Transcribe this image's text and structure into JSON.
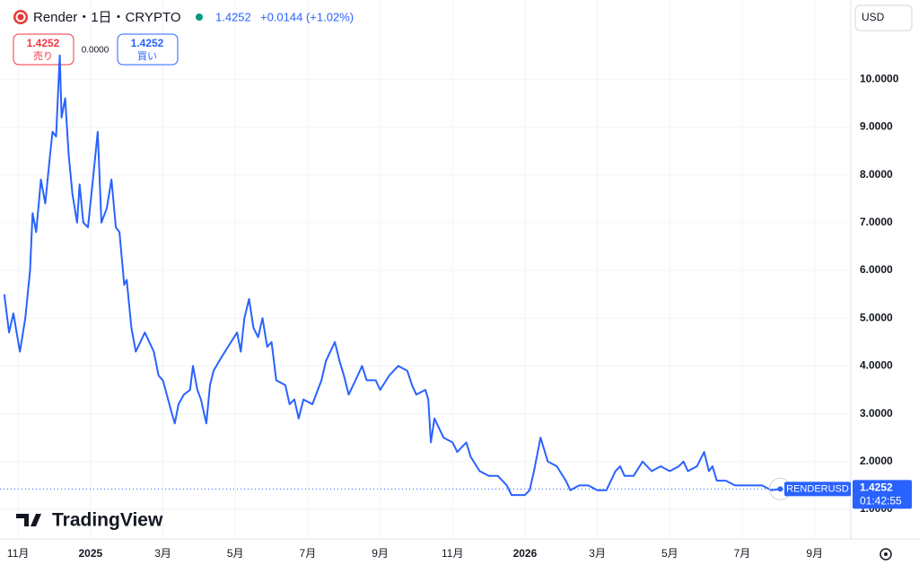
{
  "header": {
    "symbol": "Render・1日・CRYPTO",
    "price": "1.4252",
    "change": "+0.0144 (+1.02%)"
  },
  "trade": {
    "sell_price": "1.4252",
    "sell_label": "売り",
    "spread": "0.0000",
    "buy_price": "1.4252",
    "buy_label": "買い"
  },
  "currency": "USD",
  "logo": "TradingView",
  "countdown": "01:42:55",
  "chart_data": {
    "type": "line",
    "x": [
      -0.38,
      -0.25,
      -0.13,
      0.05,
      0.2,
      0.33,
      0.4,
      0.5,
      0.63,
      0.75,
      0.88,
      0.95,
      1.05,
      1.15,
      1.2,
      1.3,
      1.4,
      1.5,
      1.63,
      1.7,
      1.8,
      1.93,
      2.08,
      2.2,
      2.3,
      2.45,
      2.58,
      2.7,
      2.8,
      2.93,
      3.0,
      3.13,
      3.25,
      3.5,
      3.75,
      3.88,
      4.0,
      4.25,
      4.33,
      4.43,
      4.58,
      4.75,
      4.83,
      4.95,
      5.05,
      5.2,
      5.3,
      5.4,
      5.63,
      5.88,
      6.05,
      6.15,
      6.25,
      6.38,
      6.5,
      6.63,
      6.75,
      6.88,
      7.0,
      7.13,
      7.38,
      7.5,
      7.63,
      7.75,
      7.88,
      8.13,
      8.38,
      8.5,
      8.75,
      8.88,
      9.0,
      9.13,
      9.38,
      9.5,
      9.63,
      9.88,
      10.0,
      10.25,
      10.5,
      10.75,
      10.88,
      11.0,
      11.25,
      11.33,
      11.4,
      11.5,
      11.75,
      12.0,
      12.13,
      12.38,
      12.5,
      12.75,
      13.0,
      13.25,
      13.5,
      13.63,
      14.0,
      14.13,
      14.25,
      14.43,
      14.63,
      14.88,
      15.13,
      15.25,
      15.5,
      15.75,
      16.0,
      16.25,
      16.5,
      16.63,
      16.75,
      17.0,
      17.25,
      17.5,
      17.75,
      18.0,
      18.25,
      18.38,
      18.5,
      18.75,
      18.95,
      19.08,
      19.18,
      19.3,
      19.55,
      19.8,
      20.05,
      20.3,
      20.55,
      20.8,
      21.05
    ],
    "series": [
      {
        "name": "RENDERUSD",
        "color": "#2962ff",
        "values": [
          5.5,
          4.7,
          5.1,
          4.3,
          5.0,
          6.0,
          7.2,
          6.8,
          7.9,
          7.4,
          8.4,
          8.9,
          8.8,
          10.5,
          9.2,
          9.6,
          8.4,
          7.6,
          7.0,
          7.8,
          7.0,
          6.9,
          8.0,
          8.9,
          7.0,
          7.3,
          7.9,
          6.9,
          6.8,
          5.7,
          5.8,
          4.8,
          4.3,
          4.7,
          4.3,
          3.8,
          3.7,
          3.0,
          2.8,
          3.2,
          3.4,
          3.5,
          4.0,
          3.5,
          3.3,
          2.8,
          3.6,
          3.9,
          4.2,
          4.5,
          4.7,
          4.3,
          5.0,
          5.4,
          4.8,
          4.6,
          5.0,
          4.4,
          4.5,
          3.7,
          3.6,
          3.2,
          3.3,
          2.9,
          3.3,
          3.2,
          3.7,
          4.1,
          4.5,
          4.1,
          3.8,
          3.4,
          3.8,
          4.0,
          3.7,
          3.7,
          3.5,
          3.8,
          4.0,
          3.9,
          3.6,
          3.4,
          3.5,
          3.3,
          2.4,
          2.9,
          2.5,
          2.4,
          2.2,
          2.4,
          2.1,
          1.8,
          1.7,
          1.7,
          1.5,
          1.3,
          1.3,
          1.4,
          1.8,
          2.5,
          2.0,
          1.9,
          1.6,
          1.4,
          1.5,
          1.5,
          1.4,
          1.4,
          1.8,
          1.9,
          1.7,
          1.7,
          2.0,
          1.8,
          1.9,
          1.8,
          1.9,
          2.0,
          1.8,
          1.9,
          2.2,
          1.8,
          1.9,
          1.6,
          1.6,
          1.5,
          1.5,
          1.5,
          1.5,
          1.4,
          1.4252
        ]
      }
    ],
    "last_value": 1.4252,
    "xlim": [
      -0.5,
      23.0
    ],
    "xticks": [
      {
        "value": 0,
        "label": "11月"
      },
      {
        "value": 2,
        "label": "2025"
      },
      {
        "value": 4,
        "label": "3月"
      },
      {
        "value": 6,
        "label": "5月"
      },
      {
        "value": 8,
        "label": "7月"
      },
      {
        "value": 10,
        "label": "9月"
      },
      {
        "value": 12,
        "label": "11月"
      },
      {
        "value": 14,
        "label": "2026"
      },
      {
        "value": 16,
        "label": "3月"
      },
      {
        "value": 18,
        "label": "5月"
      },
      {
        "value": 20,
        "label": "7月"
      },
      {
        "value": 22,
        "label": "9月"
      }
    ],
    "ylim": [
      0.38,
      11.0
    ],
    "yticks": [
      {
        "value": 1,
        "label": "1.0000"
      },
      {
        "value": 2,
        "label": "2.0000"
      },
      {
        "value": 3,
        "label": "3.0000"
      },
      {
        "value": 4,
        "label": "4.0000"
      },
      {
        "value": 5,
        "label": "5.0000"
      },
      {
        "value": 6,
        "label": "6.0000"
      },
      {
        "value": 7,
        "label": "7.0000"
      },
      {
        "value": 8,
        "label": "8.0000"
      },
      {
        "value": 9,
        "label": "9.0000"
      },
      {
        "value": 10,
        "label": "10.0000"
      }
    ],
    "grid": true
  }
}
